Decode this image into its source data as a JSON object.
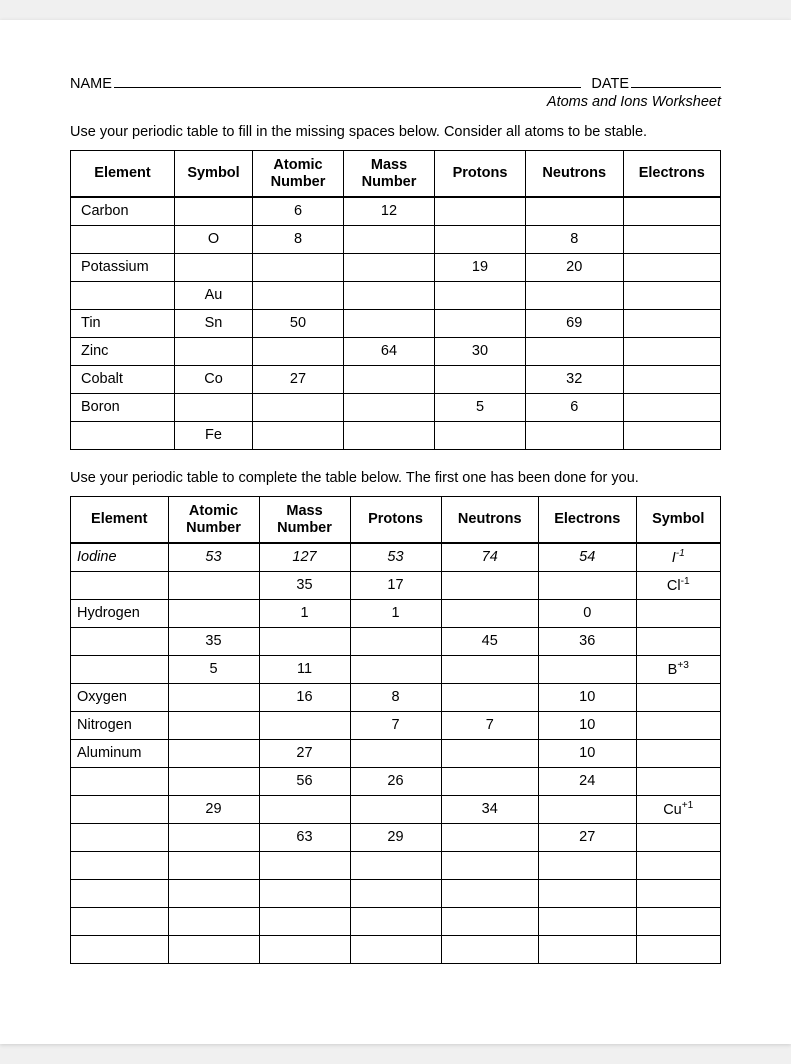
{
  "header": {
    "name_label": "NAME",
    "date_label": "DATE",
    "subtitle": "Atoms and Ions Worksheet"
  },
  "table1": {
    "instruction": "Use your periodic table to fill in the missing spaces below. Consider all atoms to be stable.",
    "columns": [
      "Element",
      "Symbol",
      "Atomic Number",
      "Mass Number",
      "Protons",
      "Neutrons",
      "Electrons"
    ],
    "col_widths_pct": [
      16,
      12,
      14,
      14,
      14,
      15,
      15
    ],
    "rows": [
      [
        "Carbon",
        "",
        "6",
        "12",
        "",
        "",
        ""
      ],
      [
        "",
        "O",
        "8",
        "",
        "",
        "8",
        ""
      ],
      [
        "Potassium",
        "",
        "",
        "",
        "19",
        "20",
        ""
      ],
      [
        "",
        "Au",
        "",
        "",
        "",
        "",
        ""
      ],
      [
        "Tin",
        "Sn",
        "50",
        "",
        "",
        "69",
        ""
      ],
      [
        "Zinc",
        "",
        "",
        "64",
        "30",
        "",
        ""
      ],
      [
        "Cobalt",
        "Co",
        "27",
        "",
        "",
        "32",
        ""
      ],
      [
        "Boron",
        "",
        "",
        "",
        "5",
        "6",
        ""
      ],
      [
        "",
        "Fe",
        "",
        "",
        "",
        "",
        ""
      ]
    ]
  },
  "table2": {
    "instruction": "Use your periodic table to complete the table below. The first one has been done for you.",
    "columns": [
      "Element",
      "Atomic Number",
      "Mass Number",
      "Protons",
      "Neutrons",
      "Electrons",
      "Symbol"
    ],
    "col_widths_pct": [
      15,
      14,
      14,
      14,
      15,
      15,
      13
    ],
    "rows": [
      {
        "cells": [
          "Iodine",
          "53",
          "127",
          "53",
          "74",
          "54",
          {
            "base": "I",
            "sup": "-1"
          }
        ],
        "italic": true
      },
      {
        "cells": [
          "",
          "",
          "35",
          "17",
          "",
          "",
          {
            "base": "Cl",
            "sup": "-1"
          }
        ]
      },
      {
        "cells": [
          "Hydrogen",
          "",
          "1",
          "1",
          "",
          "0",
          ""
        ]
      },
      {
        "cells": [
          "",
          "35",
          "",
          "",
          "45",
          "36",
          ""
        ]
      },
      {
        "cells": [
          "",
          "5",
          "11",
          "",
          "",
          "",
          {
            "base": "B",
            "sup": "+3"
          }
        ]
      },
      {
        "cells": [
          "Oxygen",
          "",
          "16",
          "8",
          "",
          "10",
          ""
        ]
      },
      {
        "cells": [
          "Nitrogen",
          "",
          "",
          "7",
          "7",
          "10",
          ""
        ]
      },
      {
        "cells": [
          "Aluminum",
          "",
          "27",
          "",
          "",
          "10",
          ""
        ]
      },
      {
        "cells": [
          "",
          "",
          "56",
          "26",
          "",
          "24",
          ""
        ]
      },
      {
        "cells": [
          "",
          "29",
          "",
          "",
          "34",
          "",
          {
            "base": "Cu",
            "sup": "+1"
          }
        ]
      },
      {
        "cells": [
          "",
          "",
          "63",
          "29",
          "",
          "27",
          ""
        ]
      },
      {
        "cells": [
          "",
          "",
          "",
          "",
          "",
          "",
          ""
        ]
      },
      {
        "cells": [
          "",
          "",
          "",
          "",
          "",
          "",
          ""
        ]
      },
      {
        "cells": [
          "",
          "",
          "",
          "",
          "",
          "",
          ""
        ]
      },
      {
        "cells": [
          "",
          "",
          "",
          "",
          "",
          "",
          ""
        ]
      }
    ]
  },
  "style": {
    "page_bg": "#ffffff",
    "text_color": "#000000",
    "border_color": "#000000",
    "font_family": "Arial",
    "header_font_size_pt": 11,
    "body_font_size_pt": 11
  }
}
